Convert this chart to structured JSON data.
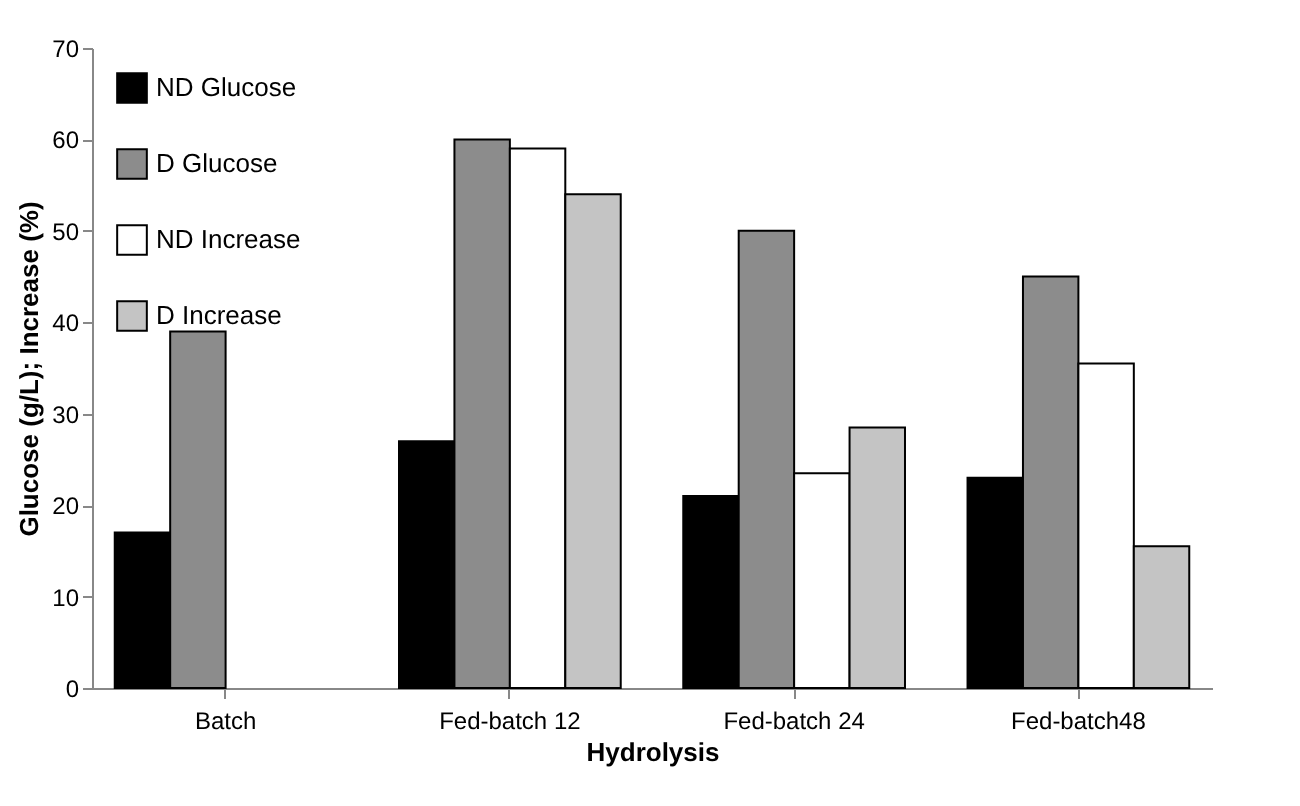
{
  "chart_data": {
    "type": "bar",
    "xlabel": "Hydrolysis",
    "ylabel": "Glucose (g/L); Increase (%)",
    "categories": [
      "Batch",
      "Fed-batch 12",
      "Fed-batch 24",
      "Fed-batch48"
    ],
    "series": [
      {
        "name": "ND  Glucose",
        "color": "#000000",
        "values": [
          17,
          27,
          21,
          23
        ]
      },
      {
        "name": "D Glucose",
        "color": "#8c8c8c",
        "values": [
          39,
          60,
          50,
          45
        ]
      },
      {
        "name": "ND Increase",
        "color": "#ffffff",
        "values": [
          null,
          59,
          23.5,
          35.5
        ]
      },
      {
        "name": "D Increase",
        "color": "#c4c4c4",
        "values": [
          null,
          54,
          28.5,
          15.5
        ]
      }
    ],
    "ylim": [
      0,
      70
    ],
    "yticks": [
      0,
      10,
      20,
      30,
      40,
      50,
      60,
      70
    ],
    "grid": false,
    "legend": "top left"
  }
}
